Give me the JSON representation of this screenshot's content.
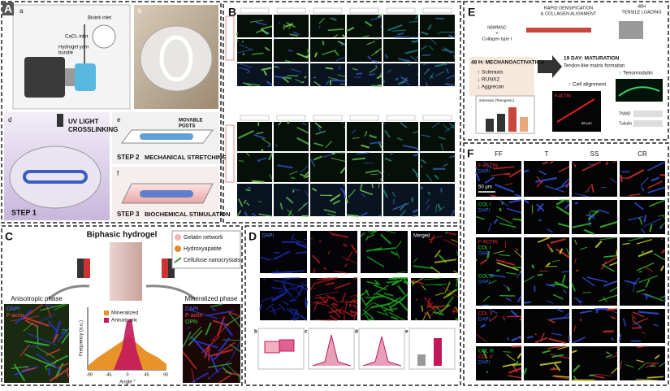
{
  "A": {
    "letter": "A",
    "a": "a",
    "b": "b",
    "d": "d",
    "e": "e",
    "f": "f",
    "bioink": "Bioink inlet",
    "cacl2": "CaCl₂ inlet",
    "yarn": [
      "Hydrogel yarn",
      "bundle"
    ],
    "uv": [
      "UV LIGHT",
      "CROSSLINKING"
    ],
    "step1": "STEP 1",
    "posts": [
      "MOVABLE",
      "POSTS"
    ],
    "step2": "STEP 2",
    "stretch": "MECHANICAL STRETCHING",
    "step3": "STEP 3",
    "stim": "BIOCHEMICAL STIMULATION"
  },
  "B": {
    "letter": "B"
  },
  "C": {
    "letter": "C",
    "title": "Biphasic hydrogel",
    "legend": [
      "Gelatin network",
      "Hydroxyapatite",
      "Cellulose nanocrystals"
    ],
    "left_title": "Anisotropic phase",
    "right_title": "Mineralized phase",
    "left_stains": [
      "DAPI",
      "F-actin"
    ],
    "right_stains": [
      "DAPI",
      "F-actin",
      "OPN"
    ],
    "plot": {
      "ylabel": "Frequency (a.u.)",
      "xlabel": "Angle °",
      "xticks": [
        "-90",
        "-45",
        "0",
        "45",
        "90"
      ],
      "series": [
        "Mineralized",
        "Anisotropic"
      ]
    }
  },
  "D": {
    "letter": "D",
    "col_first": "DAPI",
    "col_last": "Merged",
    "sub": [
      "b",
      "c",
      "d",
      "e"
    ]
  },
  "E": {
    "letter": "E",
    "process": [
      "RAPID DENSIFICATION",
      "& COLLAGEN ALIGNMENT"
    ],
    "loading": [
      "48H",
      "TENSILE LOADING"
    ],
    "cells": [
      "hBMMSC",
      "+",
      "Collagen type I"
    ],
    "stage1": "48 H: MECHANOACTIVATION",
    "markers": [
      "↑ Scleraxis",
      "↓ RUNX2",
      "↓ Aggrecan"
    ],
    "stage2": "19 DAY: MATURATION",
    "stage2_sub": "Tendon-like matrix formation",
    "alignment": "↑ Cell alignment",
    "tenomodulin": "↑ Tenomodulin",
    "factin": "F-ACTIN",
    "scale": "50 µm",
    "blot": [
      "TNMD",
      "Tubulin"
    ],
    "chart_label": "Scleraxis (Tenogenic)"
  },
  "F": {
    "letter": "F",
    "columns": [
      "FF",
      "T",
      "SS",
      "CR"
    ],
    "rows": [
      [
        "F-ACTIN",
        "DAPI"
      ],
      [
        "COL I",
        "DAPI"
      ],
      [
        "F-ACTIN",
        "COL I",
        "DAPI"
      ],
      [
        "COL III",
        "DAPI"
      ],
      [
        "COL V",
        "DAPI"
      ],
      [
        "COL III",
        "COL V",
        "DAPI"
      ]
    ],
    "scale": "50 µm"
  }
}
